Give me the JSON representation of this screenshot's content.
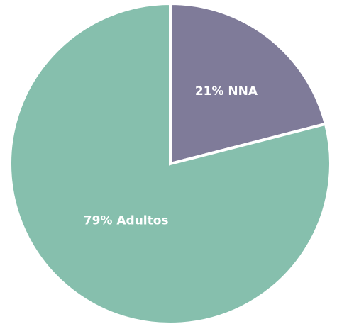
{
  "chart_data": {
    "type": "pie",
    "values": [
      21,
      79
    ],
    "value_labels": [
      "21% NNA",
      "79% Adultos"
    ],
    "colors": [
      "#7f7b99",
      "#86bfad"
    ]
  }
}
